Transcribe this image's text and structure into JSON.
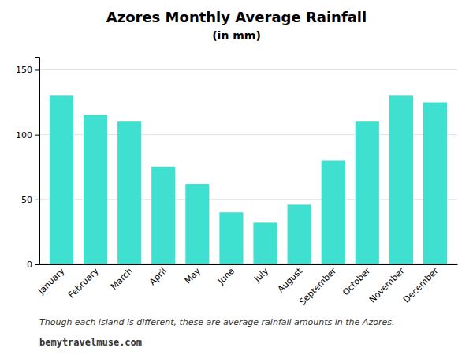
{
  "chart_data": {
    "type": "bar",
    "title": "Azores Monthly Average Rainfall",
    "subtitle": "(in mm)",
    "categories": [
      "January",
      "February",
      "March",
      "April",
      "May",
      "June",
      "July",
      "August",
      "September",
      "October",
      "November",
      "December"
    ],
    "values": [
      130,
      115,
      110,
      75,
      62,
      40,
      32,
      46,
      80,
      110,
      130,
      125
    ],
    "color": "#40E0D0",
    "ylim": [
      0,
      160
    ],
    "yticks": [
      0,
      50,
      100,
      150
    ],
    "grid": true,
    "annotations": [
      "Though each island is different, these are average rainfall amounts in the Azores.",
      "bemytravelmuse.com"
    ]
  }
}
